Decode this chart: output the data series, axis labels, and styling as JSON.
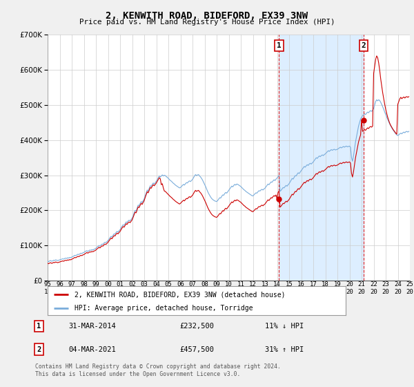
{
  "title": "2, KENWITH ROAD, BIDEFORD, EX39 3NW",
  "subtitle": "Price paid vs. HM Land Registry's House Price Index (HPI)",
  "property_label": "2, KENWITH ROAD, BIDEFORD, EX39 3NW (detached house)",
  "hpi_label": "HPI: Average price, detached house, Torridge",
  "footnote": "Contains HM Land Registry data © Crown copyright and database right 2024.\nThis data is licensed under the Open Government Licence v3.0.",
  "annotation1": {
    "num": "1",
    "date": "31-MAR-2014",
    "price": "£232,500",
    "hpi": "11% ↓ HPI"
  },
  "annotation2": {
    "num": "2",
    "date": "04-MAR-2021",
    "price": "£457,500",
    "hpi": "31% ↑ HPI"
  },
  "property_color": "#cc0000",
  "hpi_color": "#7aaddb",
  "shade_color": "#ddeeff",
  "background_color": "#f0f0f0",
  "plot_bg_color": "#ffffff",
  "grid_color": "#cccccc",
  "annotation_line_color": "#dd2222",
  "ylim": [
    0,
    700000
  ],
  "yticks": [
    0,
    100000,
    200000,
    300000,
    400000,
    500000,
    600000,
    700000
  ],
  "sale1_x": 2014.167,
  "sale1_marker_y": 232500,
  "sale2_x": 2021.167,
  "sale2_marker_y": 457500,
  "hpi_dates_monthly": [
    1995.0,
    1995.083,
    1995.167,
    1995.25,
    1995.333,
    1995.417,
    1995.5,
    1995.583,
    1995.667,
    1995.75,
    1995.833,
    1995.917,
    1996.0,
    1996.083,
    1996.167,
    1996.25,
    1996.333,
    1996.417,
    1996.5,
    1996.583,
    1996.667,
    1996.75,
    1996.833,
    1996.917,
    1997.0,
    1997.083,
    1997.167,
    1997.25,
    1997.333,
    1997.417,
    1997.5,
    1997.583,
    1997.667,
    1997.75,
    1997.833,
    1997.917,
    1998.0,
    1998.083,
    1998.167,
    1998.25,
    1998.333,
    1998.417,
    1998.5,
    1998.583,
    1998.667,
    1998.75,
    1998.833,
    1998.917,
    1999.0,
    1999.083,
    1999.167,
    1999.25,
    1999.333,
    1999.417,
    1999.5,
    1999.583,
    1999.667,
    1999.75,
    1999.833,
    1999.917,
    2000.0,
    2000.083,
    2000.167,
    2000.25,
    2000.333,
    2000.417,
    2000.5,
    2000.583,
    2000.667,
    2000.75,
    2000.833,
    2000.917,
    2001.0,
    2001.083,
    2001.167,
    2001.25,
    2001.333,
    2001.417,
    2001.5,
    2001.583,
    2001.667,
    2001.75,
    2001.833,
    2001.917,
    2002.0,
    2002.083,
    2002.167,
    2002.25,
    2002.333,
    2002.417,
    2002.5,
    2002.583,
    2002.667,
    2002.75,
    2002.833,
    2002.917,
    2003.0,
    2003.083,
    2003.167,
    2003.25,
    2003.333,
    2003.417,
    2003.5,
    2003.583,
    2003.667,
    2003.75,
    2003.833,
    2003.917,
    2004.0,
    2004.083,
    2004.167,
    2004.25,
    2004.333,
    2004.417,
    2004.5,
    2004.583,
    2004.667,
    2004.75,
    2004.833,
    2004.917,
    2005.0,
    2005.083,
    2005.167,
    2005.25,
    2005.333,
    2005.417,
    2005.5,
    2005.583,
    2005.667,
    2005.75,
    2005.833,
    2005.917,
    2006.0,
    2006.083,
    2006.167,
    2006.25,
    2006.333,
    2006.417,
    2006.5,
    2006.583,
    2006.667,
    2006.75,
    2006.833,
    2006.917,
    2007.0,
    2007.083,
    2007.167,
    2007.25,
    2007.333,
    2007.417,
    2007.5,
    2007.583,
    2007.667,
    2007.75,
    2007.833,
    2007.917,
    2008.0,
    2008.083,
    2008.167,
    2008.25,
    2008.333,
    2008.417,
    2008.5,
    2008.583,
    2008.667,
    2008.75,
    2008.833,
    2008.917,
    2009.0,
    2009.083,
    2009.167,
    2009.25,
    2009.333,
    2009.417,
    2009.5,
    2009.583,
    2009.667,
    2009.75,
    2009.833,
    2009.917,
    2010.0,
    2010.083,
    2010.167,
    2010.25,
    2010.333,
    2010.417,
    2010.5,
    2010.583,
    2010.667,
    2010.75,
    2010.833,
    2010.917,
    2011.0,
    2011.083,
    2011.167,
    2011.25,
    2011.333,
    2011.417,
    2011.5,
    2011.583,
    2011.667,
    2011.75,
    2011.833,
    2011.917,
    2012.0,
    2012.083,
    2012.167,
    2012.25,
    2012.333,
    2012.417,
    2012.5,
    2012.583,
    2012.667,
    2012.75,
    2012.833,
    2012.917,
    2013.0,
    2013.083,
    2013.167,
    2013.25,
    2013.333,
    2013.417,
    2013.5,
    2013.583,
    2013.667,
    2013.75,
    2013.833,
    2013.917,
    2014.0,
    2014.083,
    2014.167,
    2014.25,
    2014.333,
    2014.417,
    2014.5,
    2014.583,
    2014.667,
    2014.75,
    2014.833,
    2014.917,
    2015.0,
    2015.083,
    2015.167,
    2015.25,
    2015.333,
    2015.417,
    2015.5,
    2015.583,
    2015.667,
    2015.75,
    2015.833,
    2015.917,
    2016.0,
    2016.083,
    2016.167,
    2016.25,
    2016.333,
    2016.417,
    2016.5,
    2016.583,
    2016.667,
    2016.75,
    2016.833,
    2016.917,
    2017.0,
    2017.083,
    2017.167,
    2017.25,
    2017.333,
    2017.417,
    2017.5,
    2017.583,
    2017.667,
    2017.75,
    2017.833,
    2017.917,
    2018.0,
    2018.083,
    2018.167,
    2018.25,
    2018.333,
    2018.417,
    2018.5,
    2018.583,
    2018.667,
    2018.75,
    2018.833,
    2018.917,
    2019.0,
    2019.083,
    2019.167,
    2019.25,
    2019.333,
    2019.417,
    2019.5,
    2019.583,
    2019.667,
    2019.75,
    2019.833,
    2019.917,
    2020.0,
    2020.083,
    2020.167,
    2020.25,
    2020.333,
    2020.417,
    2020.5,
    2020.583,
    2020.667,
    2020.75,
    2020.833,
    2020.917,
    2021.0,
    2021.083,
    2021.167,
    2021.25,
    2021.333,
    2021.417,
    2021.5,
    2021.583,
    2021.667,
    2021.75,
    2021.833,
    2021.917,
    2022.0,
    2022.083,
    2022.167,
    2022.25,
    2022.333,
    2022.417,
    2022.5,
    2022.583,
    2022.667,
    2022.75,
    2022.833,
    2022.917,
    2023.0,
    2023.083,
    2023.167,
    2023.25,
    2023.333,
    2023.417,
    2023.5,
    2023.583,
    2023.667,
    2023.75,
    2023.833,
    2023.917,
    2024.0,
    2024.083,
    2024.167,
    2024.25,
    2024.333,
    2024.417,
    2024.5,
    2024.583,
    2024.667,
    2024.75,
    2024.833,
    2024.917
  ],
  "hpi_values": [
    55000,
    54000,
    56000,
    57000,
    55000,
    56000,
    58000,
    57000,
    59000,
    58000,
    57000,
    58000,
    59000,
    60000,
    61000,
    62000,
    61000,
    63000,
    64000,
    63000,
    65000,
    64000,
    66000,
    65000,
    67000,
    68000,
    70000,
    72000,
    71000,
    73000,
    75000,
    74000,
    76000,
    78000,
    77000,
    79000,
    80000,
    82000,
    84000,
    85000,
    83000,
    85000,
    87000,
    86000,
    88000,
    87000,
    89000,
    90000,
    92000,
    95000,
    97000,
    100000,
    98000,
    101000,
    104000,
    103000,
    107000,
    109000,
    108000,
    111000,
    114000,
    118000,
    122000,
    126000,
    124000,
    129000,
    133000,
    132000,
    137000,
    140000,
    138000,
    142000,
    145000,
    150000,
    155000,
    159000,
    157000,
    162000,
    167000,
    165000,
    170000,
    172000,
    170000,
    174000,
    178000,
    185000,
    193000,
    200000,
    198000,
    207000,
    215000,
    213000,
    220000,
    225000,
    222000,
    228000,
    233000,
    242000,
    250000,
    258000,
    255000,
    263000,
    270000,
    268000,
    274000,
    278000,
    275000,
    279000,
    283000,
    288000,
    293000,
    298000,
    295000,
    298000,
    301000,
    298000,
    300000,
    299000,
    296000,
    294000,
    291000,
    288000,
    285000,
    283000,
    280000,
    277000,
    275000,
    272000,
    270000,
    268000,
    266000,
    264000,
    265000,
    268000,
    271000,
    274000,
    272000,
    276000,
    279000,
    278000,
    282000,
    284000,
    282000,
    285000,
    288000,
    293000,
    298000,
    302000,
    299000,
    301000,
    302000,
    298000,
    295000,
    291000,
    286000,
    280000,
    274000,
    268000,
    261000,
    254000,
    248000,
    243000,
    238000,
    234000,
    231000,
    229000,
    227000,
    226000,
    225000,
    228000,
    232000,
    236000,
    235000,
    240000,
    244000,
    243000,
    248000,
    251000,
    249000,
    253000,
    257000,
    261000,
    265000,
    269000,
    267000,
    271000,
    274000,
    272000,
    275000,
    274000,
    272000,
    270000,
    268000,
    265000,
    262000,
    259000,
    257000,
    254000,
    252000,
    250000,
    248000,
    246000,
    244000,
    242000,
    241000,
    244000,
    247000,
    250000,
    249000,
    253000,
    256000,
    255000,
    258000,
    260000,
    258000,
    261000,
    263000,
    267000,
    271000,
    275000,
    273000,
    277000,
    281000,
    280000,
    284000,
    287000,
    285000,
    289000,
    292000,
    296000,
    300000,
    254000,
    257000,
    261000,
    265000,
    264000,
    268000,
    271000,
    269000,
    273000,
    276000,
    281000,
    286000,
    291000,
    289000,
    294000,
    299000,
    298000,
    303000,
    307000,
    305000,
    309000,
    313000,
    317000,
    321000,
    325000,
    323000,
    327000,
    330000,
    328000,
    332000,
    334000,
    332000,
    335000,
    338000,
    342000,
    346000,
    350000,
    348000,
    352000,
    355000,
    353000,
    356000,
    358000,
    356000,
    359000,
    361000,
    364000,
    367000,
    370000,
    368000,
    371000,
    373000,
    371000,
    373000,
    374000,
    372000,
    373000,
    374000,
    376000,
    378000,
    380000,
    378000,
    380000,
    382000,
    380000,
    382000,
    383000,
    381000,
    382000,
    383000,
    380000,
    350000,
    340000,
    355000,
    375000,
    395000,
    410000,
    425000,
    440000,
    450000,
    460000,
    465000,
    470000,
    472000,
    475000,
    473000,
    477000,
    480000,
    478000,
    482000,
    484000,
    482000,
    485000,
    490000,
    500000,
    510000,
    515000,
    512000,
    515000,
    513000,
    508000,
    502000,
    495000,
    488000,
    480000,
    473000,
    466000,
    459000,
    452000,
    446000,
    440000,
    435000,
    430000,
    426000,
    422000,
    418000,
    415000,
    413000,
    415000,
    418000,
    420000,
    418000,
    421000,
    423000,
    421000,
    424000,
    425000,
    423000,
    425000
  ],
  "prop_values": [
    49000,
    48000,
    50000,
    51000,
    49000,
    50000,
    52000,
    51000,
    53000,
    52000,
    51000,
    52000,
    53000,
    54000,
    55000,
    56000,
    55000,
    57000,
    58000,
    57000,
    59000,
    58000,
    60000,
    59000,
    61000,
    62000,
    64000,
    66000,
    65000,
    67000,
    69000,
    68000,
    70000,
    72000,
    71000,
    73000,
    74000,
    76000,
    78000,
    80000,
    78000,
    80000,
    82000,
    81000,
    83000,
    82000,
    84000,
    85000,
    87000,
    90000,
    92000,
    95000,
    93000,
    96000,
    99000,
    98000,
    102000,
    104000,
    103000,
    106000,
    109000,
    113000,
    117000,
    121000,
    119000,
    124000,
    128000,
    127000,
    132000,
    135000,
    133000,
    137000,
    140000,
    145000,
    150000,
    154000,
    152000,
    157000,
    162000,
    160000,
    165000,
    167000,
    165000,
    169000,
    173000,
    180000,
    188000,
    195000,
    193000,
    202000,
    210000,
    208000,
    215000,
    220000,
    217000,
    223000,
    228000,
    237000,
    245000,
    253000,
    250000,
    258000,
    265000,
    263000,
    269000,
    273000,
    270000,
    274000,
    278000,
    283000,
    288000,
    293000,
    290000,
    273000,
    276000,
    264000,
    255000,
    254000,
    251000,
    248000,
    245000,
    242000,
    239000,
    237000,
    234000,
    231000,
    229000,
    226000,
    224000,
    222000,
    220000,
    218000,
    220000,
    223000,
    226000,
    229000,
    227000,
    231000,
    234000,
    233000,
    237000,
    239000,
    237000,
    240000,
    243000,
    248000,
    253000,
    257000,
    254000,
    256000,
    257000,
    253000,
    250000,
    246000,
    241000,
    235000,
    229000,
    223000,
    216000,
    209000,
    203000,
    198000,
    193000,
    189000,
    186000,
    184000,
    182000,
    181000,
    180000,
    183000,
    187000,
    191000,
    190000,
    195000,
    199000,
    198000,
    203000,
    206000,
    204000,
    208000,
    212000,
    216000,
    220000,
    224000,
    222000,
    226000,
    229000,
    227000,
    230000,
    229000,
    227000,
    225000,
    223000,
    220000,
    217000,
    214000,
    212000,
    209000,
    207000,
    205000,
    203000,
    201000,
    199000,
    197000,
    196000,
    199000,
    202000,
    205000,
    204000,
    208000,
    211000,
    210000,
    213000,
    215000,
    213000,
    216000,
    218000,
    222000,
    226000,
    230000,
    228000,
    232000,
    236000,
    235000,
    239000,
    242000,
    240000,
    244000,
    232500,
    251000,
    255000,
    209000,
    212000,
    216000,
    220000,
    219000,
    223000,
    226000,
    224000,
    228000,
    231000,
    236000,
    241000,
    246000,
    244000,
    249000,
    254000,
    253000,
    258000,
    262000,
    260000,
    264000,
    268000,
    272000,
    276000,
    280000,
    278000,
    282000,
    285000,
    283000,
    287000,
    289000,
    287000,
    290000,
    293000,
    297000,
    301000,
    305000,
    303000,
    307000,
    310000,
    308000,
    311000,
    313000,
    311000,
    314000,
    316000,
    319000,
    322000,
    325000,
    323000,
    326000,
    328000,
    326000,
    328000,
    329000,
    327000,
    328000,
    329000,
    331000,
    333000,
    335000,
    333000,
    335000,
    337000,
    335000,
    337000,
    338000,
    336000,
    337000,
    338000,
    335000,
    305000,
    295000,
    310000,
    330000,
    350000,
    365000,
    380000,
    395000,
    405000,
    415000,
    457500,
    425000,
    427000,
    430000,
    428000,
    432000,
    435000,
    433000,
    437000,
    439000,
    437000,
    440000,
    590000,
    610000,
    630000,
    640000,
    635000,
    620000,
    600000,
    575000,
    555000,
    535000,
    518000,
    502000,
    488000,
    476000,
    465000,
    456000,
    448000,
    442000,
    437000,
    432000,
    428000,
    424000,
    420000,
    417000,
    502000,
    510000,
    518000,
    522000,
    518000,
    521000,
    523000,
    520000,
    523000,
    524000,
    522000,
    524000
  ],
  "xtick_years": [
    1995,
    1996,
    1997,
    1998,
    1999,
    2000,
    2001,
    2002,
    2003,
    2004,
    2005,
    2006,
    2007,
    2008,
    2009,
    2010,
    2011,
    2012,
    2013,
    2014,
    2015,
    2016,
    2017,
    2018,
    2019,
    2020,
    2021,
    2022,
    2023,
    2024,
    2025
  ]
}
